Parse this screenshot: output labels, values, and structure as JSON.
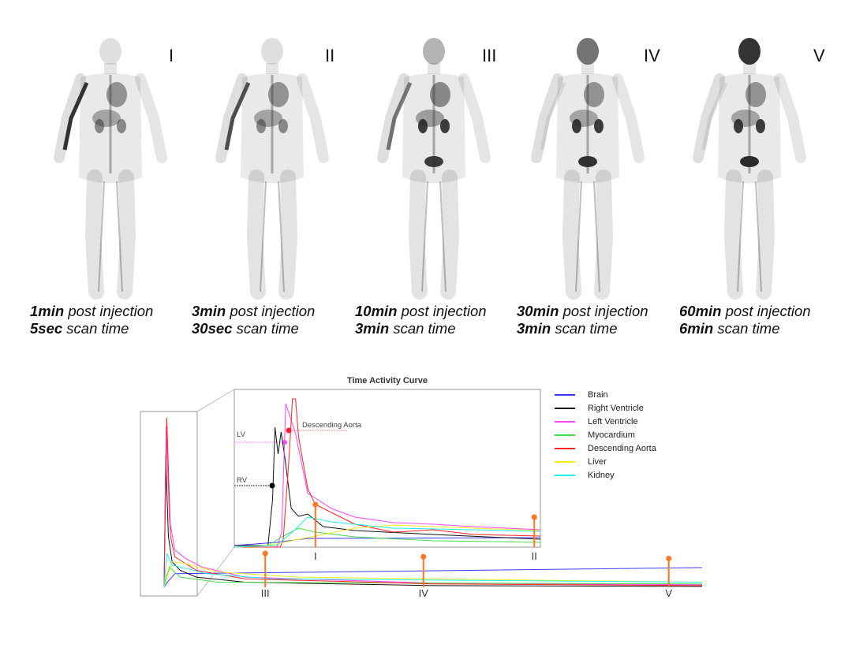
{
  "panels": [
    {
      "roman": "I",
      "time_bold": "1min",
      "time_text": " post injection",
      "scan_bold": "5sec",
      "scan_text": " scan time"
    },
    {
      "roman": "II",
      "time_bold": "3min",
      "time_text": " post injection",
      "scan_bold": "30sec",
      "scan_text": " scan time"
    },
    {
      "roman": "III",
      "time_bold": "10min",
      "time_text": " post injection",
      "scan_bold": "3min",
      "scan_text": " scan time"
    },
    {
      "roman": "IV",
      "time_bold": "30min",
      "time_text": " post injection",
      "scan_bold": "3min",
      "scan_text": " scan time"
    },
    {
      "roman": "V",
      "time_bold": "60min",
      "time_text": " post injection",
      "scan_bold": "6min",
      "scan_text": " scan time"
    }
  ],
  "chart_data": {
    "type": "line",
    "title": "Time Activity Curve",
    "grid": false,
    "legend_placement": "right",
    "annotations": {
      "lv": "LV",
      "rv": "RV",
      "aorta": "Descending Aorta"
    },
    "series": [
      {
        "name": "Brain",
        "color": "#3b3bff",
        "inset": [
          [
            0,
            1
          ],
          [
            13.7,
            3
          ],
          [
            24,
            5.5
          ],
          [
            100,
            6
          ]
        ],
        "full": [
          [
            0,
            0
          ],
          [
            0.6,
            3
          ],
          [
            2,
            8
          ],
          [
            100,
            11.6
          ]
        ]
      },
      {
        "name": "Right Ventricle",
        "color": "#111111",
        "inset": [
          [
            0,
            1
          ],
          [
            11,
            1
          ],
          [
            12.5,
            30
          ],
          [
            13.3,
            76
          ],
          [
            14.3,
            59
          ],
          [
            15.3,
            73
          ],
          [
            16.5,
            57
          ],
          [
            18.6,
            24.5
          ],
          [
            21,
            19.5
          ],
          [
            24,
            21
          ],
          [
            29,
            13
          ],
          [
            39.4,
            10.5
          ],
          [
            65,
            8
          ],
          [
            100,
            5
          ]
        ],
        "full": [
          [
            0,
            0
          ],
          [
            0.3,
            78
          ],
          [
            0.8,
            30
          ],
          [
            1.5,
            15
          ],
          [
            3,
            10
          ],
          [
            6,
            6
          ],
          [
            15,
            3
          ],
          [
            50,
            1
          ],
          [
            100,
            0.5
          ]
        ]
      },
      {
        "name": "Left Ventricle",
        "color": "#ff44ff",
        "inset": [
          [
            0,
            0
          ],
          [
            14,
            0
          ],
          [
            15.5,
            10
          ],
          [
            16.8,
            91
          ],
          [
            18,
            84
          ],
          [
            20,
            72
          ],
          [
            24,
            34
          ],
          [
            26.5,
            31
          ],
          [
            31.7,
            24.5
          ],
          [
            39.4,
            19
          ],
          [
            52,
            15.5
          ],
          [
            65,
            14.5
          ],
          [
            78,
            13
          ],
          [
            100,
            11
          ]
        ],
        "full": [
          [
            0,
            0
          ],
          [
            0.4,
            95
          ],
          [
            1,
            40
          ],
          [
            2,
            22
          ],
          [
            4,
            17
          ],
          [
            7,
            12
          ],
          [
            15,
            6
          ],
          [
            50,
            2.5
          ],
          [
            100,
            1.5
          ]
        ]
      },
      {
        "name": "Myocardium",
        "color": "#44dd44",
        "inset": [
          [
            0,
            0
          ],
          [
            11,
            1
          ],
          [
            16,
            7
          ],
          [
            21,
            12
          ],
          [
            26.5,
            9.5
          ],
          [
            39.4,
            6.5
          ],
          [
            65,
            4
          ],
          [
            100,
            3
          ]
        ],
        "full": [
          [
            0,
            0
          ],
          [
            0.4,
            6
          ],
          [
            1,
            12
          ],
          [
            3,
            6
          ],
          [
            10,
            3
          ],
          [
            50,
            2.5
          ],
          [
            100,
            2
          ]
        ]
      },
      {
        "name": "Descending Aorta",
        "color": "#ff2222",
        "inset": [
          [
            0,
            0
          ],
          [
            15,
            0
          ],
          [
            16,
            5
          ],
          [
            18,
            60
          ],
          [
            19,
            94
          ],
          [
            20,
            94
          ],
          [
            21,
            70
          ],
          [
            24,
            37
          ],
          [
            26.5,
            27
          ],
          [
            39.4,
            14.5
          ],
          [
            52,
            9.5
          ],
          [
            65,
            11
          ],
          [
            78,
            8
          ],
          [
            100,
            7
          ]
        ],
        "full": [
          [
            0,
            0
          ],
          [
            0.5,
            100
          ],
          [
            1.2,
            30
          ],
          [
            2,
            18
          ],
          [
            3.5,
            15
          ],
          [
            6,
            10
          ],
          [
            15,
            5
          ],
          [
            50,
            2
          ],
          [
            100,
            1
          ]
        ]
      },
      {
        "name": "Liver",
        "color": "#eeee22",
        "inset": [
          [
            0,
            0
          ],
          [
            11,
            1
          ],
          [
            26.5,
            7
          ],
          [
            39.4,
            12
          ],
          [
            52,
            14
          ],
          [
            65,
            13
          ],
          [
            100,
            10.5
          ]
        ],
        "full": [
          [
            0,
            0
          ],
          [
            0.5,
            5
          ],
          [
            1.5,
            15
          ],
          [
            4,
            14
          ],
          [
            10,
            9
          ],
          [
            25,
            6
          ],
          [
            100,
            3
          ]
        ]
      },
      {
        "name": "Kidney",
        "color": "#22eeee",
        "inset": [
          [
            0,
            0
          ],
          [
            13.7,
            1
          ],
          [
            19,
            9.5
          ],
          [
            24,
            19
          ],
          [
            31.7,
            16
          ],
          [
            52,
            12
          ],
          [
            78,
            11
          ],
          [
            100,
            10
          ]
        ],
        "full": [
          [
            0,
            0
          ],
          [
            0.5,
            20
          ],
          [
            1.5,
            13
          ],
          [
            3,
            12
          ],
          [
            8,
            8
          ],
          [
            20,
            5
          ],
          [
            100,
            3
          ]
        ]
      }
    ],
    "markers": [
      {
        "label": "I",
        "axis": "inset",
        "x": 26.5,
        "y": 27
      },
      {
        "label": "II",
        "axis": "inset",
        "x": 98,
        "y": 19
      },
      {
        "label": "III",
        "axis": "full",
        "x": 18.8,
        "y": 20
      },
      {
        "label": "IV",
        "axis": "full",
        "x": 48.2,
        "y": 18
      },
      {
        "label": "V",
        "axis": "full",
        "x": 93.8,
        "y": 17
      }
    ],
    "marker_color": "#ff7722"
  }
}
